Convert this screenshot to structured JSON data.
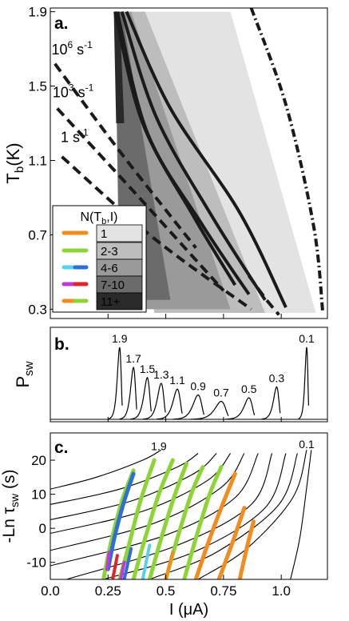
{
  "colors": {
    "gray_levels": [
      "#e3e3e3",
      "#bdbdbd",
      "#9a9a9a",
      "#6b6b6b",
      "#2a2a2a"
    ],
    "orange": "#f28c1e",
    "green": "#8fd436",
    "blue": "#2d6fd6",
    "cyan": "#5ad1e8",
    "magenta": "#c03ad4",
    "red": "#e0242a",
    "line": "#1a1a1a"
  },
  "chart_data": [
    {
      "panel": "a.",
      "type": "heatmap",
      "ylabel_main": "T",
      "ylabel_sub": "b",
      "ylabel_unit": "(K)",
      "ylim": [
        0.25,
        1.92
      ],
      "xlim": [
        0,
        1.2
      ],
      "yticks": [
        "1.9",
        "1.5",
        "1.1",
        "0.7",
        "0.3"
      ],
      "ytick_values": [
        1.9,
        1.5,
        1.1,
        0.7,
        0.3
      ],
      "rate_labels": [
        {
          "base": "10",
          "exp": "6",
          "unit": " s",
          "unit_exp": "-1",
          "T": 1.67,
          "I": 0.005
        },
        {
          "base": "10",
          "exp": "3",
          "unit": " s",
          "unit_exp": "-1",
          "T": 1.44,
          "I": 0.01
        },
        {
          "base": "1",
          "exp": "",
          "unit": " s",
          "unit_exp": "-1",
          "T": 1.2,
          "I": 0.045
        }
      ],
      "legend": {
        "title_main": "N(T",
        "title_sub": "b",
        "title_end": ",I)",
        "labels": [
          "1",
          "2-3",
          "4-6",
          "7-10",
          "11+"
        ],
        "swatches": [
          [
            "#f28c1e"
          ],
          [
            "#8fd436"
          ],
          [
            "#5ad1e8",
            "#2d6fd6"
          ],
          [
            "#c03ad4",
            "#e0242a"
          ],
          [
            "#f28c1e",
            "#8fd436"
          ]
        ]
      },
      "regions": [
        {
          "level": 0,
          "T": [
            0.28,
            1.9
          ],
          "I_left": [
            0.63,
            0.33
          ],
          "I_right": [
            1.15,
            0.78
          ]
        },
        {
          "level": 1,
          "T": [
            0.28,
            1.9
          ],
          "I_left": [
            0.45,
            0.3
          ],
          "I_right": [
            0.93,
            0.41
          ]
        },
        {
          "level": 2,
          "T": [
            0.3,
            1.9
          ],
          "I_left": [
            0.33,
            0.29
          ],
          "I_right": [
            0.78,
            0.35
          ]
        },
        {
          "level": 3,
          "T": [
            0.35,
            1.9
          ],
          "I_left": [
            0.3,
            0.28
          ],
          "I_right": [
            0.52,
            0.31
          ]
        },
        {
          "level": 4,
          "T": [
            1.3,
            1.9
          ],
          "I_left": [
            0.285,
            0.275
          ],
          "I_right": [
            0.32,
            0.3
          ]
        }
      ],
      "solid_curves": [
        {
          "I": [
            0.28,
            0.4,
            0.62,
            0.8
          ],
          "T": [
            1.9,
            1.3,
            0.8,
            0.43
          ]
        },
        {
          "I": [
            0.29,
            0.42,
            0.66,
            0.86
          ],
          "T": [
            1.9,
            1.25,
            0.75,
            0.38
          ]
        },
        {
          "I": [
            0.31,
            0.46,
            0.7,
            0.93
          ],
          "T": [
            1.9,
            1.33,
            0.8,
            0.35
          ]
        },
        {
          "I": [
            0.33,
            0.52,
            0.82,
            1.02
          ],
          "T": [
            1.9,
            1.38,
            0.82,
            0.31
          ]
        }
      ],
      "dashed_curves": [
        {
          "I": [
            0.02,
            0.3,
            0.63
          ],
          "T": [
            1.62,
            1.15,
            0.63
          ]
        },
        {
          "I": [
            0.03,
            0.4,
            0.75
          ],
          "T": [
            1.38,
            0.88,
            0.4
          ]
        },
        {
          "I": [
            0.05,
            0.45,
            0.87
          ],
          "T": [
            1.12,
            0.68,
            0.3
          ]
        },
        {
          "I": [
            0.86,
            0.93,
            0.99
          ],
          "T": [
            0.48,
            0.36,
            0.27
          ]
        }
      ],
      "dashdot_curve": {
        "I": [
          0.87,
          1.02,
          1.14,
          1.18
        ],
        "T": [
          1.92,
          1.4,
          0.75,
          0.28
        ]
      }
    },
    {
      "panel": "b.",
      "type": "line",
      "ylabel_main": "P",
      "ylabel_sub": "sw",
      "xlim": [
        0,
        1.2
      ],
      "peaks": [
        {
          "T": "1.9",
          "I": 0.3,
          "height": 1.0,
          "width": 0.008
        },
        {
          "T": "1.7",
          "I": 0.36,
          "height": 0.72,
          "width": 0.01
        },
        {
          "T": "1.5",
          "I": 0.42,
          "height": 0.58,
          "width": 0.012
        },
        {
          "T": "1.3",
          "I": 0.48,
          "height": 0.5,
          "width": 0.013
        },
        {
          "T": "1.1",
          "I": 0.55,
          "height": 0.42,
          "width": 0.015
        },
        {
          "T": "0.9",
          "I": 0.64,
          "height": 0.34,
          "width": 0.018
        },
        {
          "T": "0.7",
          "I": 0.74,
          "height": 0.25,
          "width": 0.022
        },
        {
          "T": "0.5",
          "I": 0.86,
          "height": 0.3,
          "width": 0.017
        },
        {
          "T": "0.3",
          "I": 0.98,
          "height": 0.45,
          "width": 0.011
        },
        {
          "T": "0.1",
          "I": 1.11,
          "height": 1.0,
          "width": 0.006
        }
      ]
    },
    {
      "panel": "c.",
      "type": "line",
      "xlabel": "I (μA)",
      "ylabel_main": "-Ln τ",
      "ylabel_sub": "sw",
      "ylabel_unit": " (s)",
      "xlim": [
        0,
        1.2
      ],
      "ylim": [
        -15,
        28
      ],
      "xticks": [
        "0.0",
        "0.25",
        "0.5",
        "0.75",
        "1.0"
      ],
      "xtick_values": [
        0,
        0.25,
        0.5,
        0.75,
        1.0
      ],
      "yticks": [
        "20",
        "10",
        "0",
        "-10"
      ],
      "ytick_values": [
        20,
        10,
        0,
        -10
      ],
      "curve_labels": [
        {
          "text": "1.9",
          "I": 0.47,
          "y": 23
        },
        {
          "text": "0.1",
          "I": 1.11,
          "y": 23.5
        }
      ],
      "curves": [
        {
          "I": [
            0.0,
            0.2,
            0.4,
            0.48
          ],
          "y": [
            11.5,
            15,
            20,
            23
          ]
        },
        {
          "I": [
            0.0,
            0.3,
            0.55,
            0.64
          ],
          "y": [
            7,
            11.5,
            18,
            22
          ]
        },
        {
          "I": [
            0.0,
            0.35,
            0.62,
            0.72
          ],
          "y": [
            2.5,
            8,
            16,
            22
          ]
        },
        {
          "I": [
            0.0,
            0.4,
            0.68,
            0.78
          ],
          "y": [
            -1.5,
            5,
            14,
            22
          ]
        },
        {
          "I": [
            0.0,
            0.45,
            0.74,
            0.84
          ],
          "y": [
            -6.5,
            1.5,
            12,
            22
          ]
        },
        {
          "I": [
            0.0,
            0.5,
            0.8,
            0.9
          ],
          "y": [
            -11,
            -2,
            9,
            22
          ]
        },
        {
          "I": [
            0.07,
            0.55,
            0.87,
            0.96
          ],
          "y": [
            -15,
            -5,
            7,
            22
          ]
        },
        {
          "I": [
            0.23,
            0.62,
            0.93,
            1.02
          ],
          "y": [
            -15,
            -7,
            6,
            22
          ]
        },
        {
          "I": [
            0.43,
            0.72,
            0.99,
            1.07
          ],
          "y": [
            -15,
            -7,
            7,
            22
          ]
        },
        {
          "I": [
            0.64,
            0.85,
            1.05,
            1.11
          ],
          "y": [
            -15,
            -6,
            9,
            23
          ]
        },
        {
          "I": [
            1.04,
            1.08,
            1.11,
            1.13
          ],
          "y": [
            -15,
            -3,
            12,
            23
          ]
        }
      ],
      "data_bands": [
        {
          "color": "#8fd436",
          "w": 5,
          "I": [
            0.23,
            0.26,
            0.31,
            0.36
          ],
          "y": [
            -15,
            -5,
            8,
            17
          ]
        },
        {
          "color": "#2d6fd6",
          "w": 5,
          "I": [
            0.25,
            0.28,
            0.32,
            0.36
          ],
          "y": [
            -12,
            -2,
            8,
            16
          ]
        },
        {
          "color": "#c03ad4",
          "w": 4,
          "I": [
            0.245,
            0.255
          ],
          "y": [
            -12,
            -7
          ]
        },
        {
          "color": "#e0242a",
          "w": 4,
          "I": [
            0.27,
            0.29
          ],
          "y": [
            -15,
            -8
          ]
        },
        {
          "color": "#8fd436",
          "w": 5,
          "I": [
            0.3,
            0.34,
            0.39,
            0.45
          ],
          "y": [
            -15,
            -5,
            8,
            20
          ]
        },
        {
          "color": "#2d6fd6",
          "w": 4,
          "I": [
            0.32,
            0.35
          ],
          "y": [
            -15,
            -6
          ]
        },
        {
          "color": "#c03ad4",
          "w": 4,
          "I": [
            0.305,
            0.32
          ],
          "y": [
            -15,
            -10
          ]
        },
        {
          "color": "#8fd436",
          "w": 5,
          "I": [
            0.36,
            0.41,
            0.47,
            0.53
          ],
          "y": [
            -15,
            -3,
            10,
            20
          ]
        },
        {
          "color": "#5ad1e8",
          "w": 4,
          "I": [
            0.4,
            0.43
          ],
          "y": [
            -15,
            -5
          ]
        },
        {
          "color": "#8fd436",
          "w": 5,
          "I": [
            0.43,
            0.48,
            0.54,
            0.59
          ],
          "y": [
            -15,
            -3,
            10,
            19
          ]
        },
        {
          "color": "#8fd436",
          "w": 5,
          "I": [
            0.5,
            0.55,
            0.61,
            0.66
          ],
          "y": [
            -15,
            -3,
            10,
            18
          ]
        },
        {
          "color": "#f28c1e",
          "w": 4,
          "I": [
            0.5,
            0.53
          ],
          "y": [
            -15,
            -7
          ]
        },
        {
          "color": "#8fd436",
          "w": 5,
          "I": [
            0.58,
            0.63,
            0.69,
            0.74
          ],
          "y": [
            -15,
            -3,
            10,
            18
          ]
        },
        {
          "color": "#f28c1e",
          "w": 5,
          "I": [
            0.63,
            0.68,
            0.74,
            0.8
          ],
          "y": [
            -15,
            -5,
            6,
            16
          ]
        },
        {
          "color": "#f28c1e",
          "w": 5,
          "I": [
            0.73,
            0.79,
            0.84
          ],
          "y": [
            -15,
            -4,
            6
          ]
        },
        {
          "color": "#f28c1e",
          "w": 5,
          "I": [
            0.82,
            0.85,
            0.88
          ],
          "y": [
            -15,
            -6,
            2
          ]
        }
      ]
    }
  ]
}
